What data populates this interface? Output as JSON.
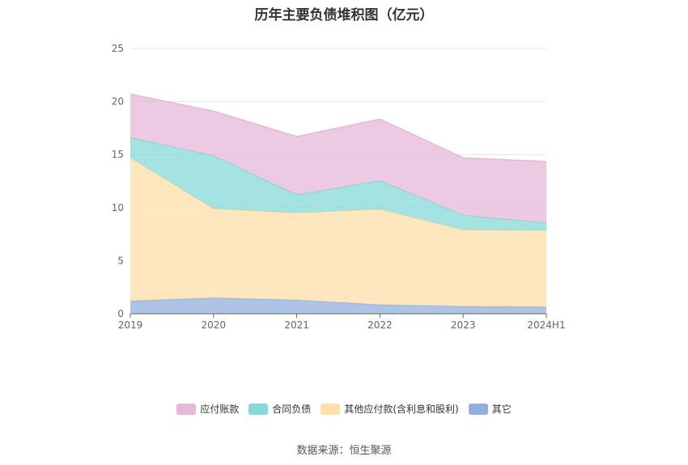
{
  "chart_data": {
    "type": "area",
    "stacked": true,
    "title": "历年主要负债堆积图（亿元）",
    "categories": [
      "2019",
      "2020",
      "2021",
      "2022",
      "2023",
      "2024H1"
    ],
    "ylim": [
      0,
      25
    ],
    "yticks": [
      "0",
      "5",
      "10",
      "15",
      "20",
      "25"
    ],
    "grid": true,
    "legend_position": "bottom",
    "series": [
      {
        "name": "其它",
        "color": "#92b0df",
        "values": [
          1.2,
          1.5,
          1.3,
          0.85,
          0.7,
          0.65
        ]
      },
      {
        "name": "其他应付款(含利息和股利)",
        "color": "#fddfa8",
        "values": [
          13.5,
          8.4,
          8.2,
          9.0,
          7.2,
          7.2
        ]
      },
      {
        "name": "合同负债",
        "color": "#86d9d8",
        "values": [
          1.9,
          5.0,
          1.7,
          2.7,
          1.4,
          0.7
        ]
      },
      {
        "name": "应付账款",
        "color": "#e6b8d8",
        "values": [
          4.1,
          4.2,
          5.5,
          5.8,
          5.4,
          5.8
        ]
      }
    ]
  },
  "legend_order": [
    "应付账款",
    "合同负债",
    "其他应付款(含利息和股利)",
    "其它"
  ],
  "source": "数据来源：恒生聚源"
}
